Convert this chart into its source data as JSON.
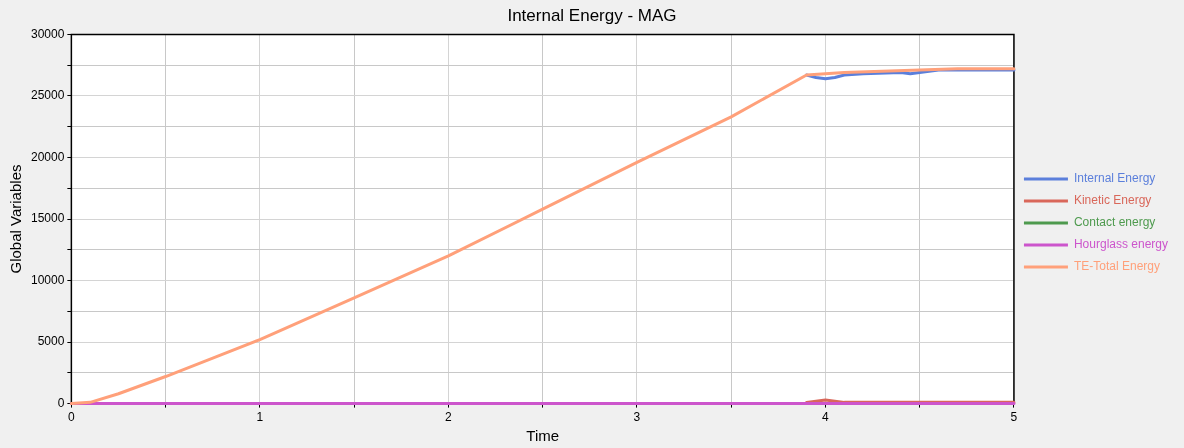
{
  "chart_data": {
    "type": "line",
    "title": "Internal Energy - MAG",
    "xlabel": "Time",
    "ylabel": "Global Variables",
    "xlim": [
      0,
      5
    ],
    "xticks": [
      0,
      {
        "value": 0.5,
        "label": null
      },
      1,
      {
        "value": 1.5,
        "label": null
      },
      2,
      {
        "value": 2.5,
        "label": null
      },
      3,
      {
        "value": 3.5,
        "label": null
      },
      4,
      {
        "value": 4.5,
        "label": null
      },
      5
    ],
    "ylim": [
      0,
      30000
    ],
    "yticks": [
      0,
      {
        "value": 2500,
        "label": null
      },
      5000,
      {
        "value": 7500,
        "label": null
      },
      10000,
      {
        "value": 12500,
        "label": null
      },
      15000,
      {
        "value": 17500,
        "label": null
      },
      20000,
      {
        "value": 22500,
        "label": null
      },
      25000,
      {
        "value": 27500,
        "label": null
      },
      30000
    ],
    "grid": true,
    "legend": "right",
    "marker": "none",
    "line_style": "solid",
    "series": [
      {
        "name": "Internal Energy",
        "color": "#5b7fdb",
        "x": [
          3.9,
          3.95,
          4.0,
          4.05,
          4.1,
          4.2,
          4.4,
          4.45,
          4.5,
          4.6,
          4.8,
          5
        ],
        "values": [
          26700,
          26500,
          26400,
          26500,
          26700,
          26800,
          26900,
          26800,
          26900,
          27100,
          27100,
          27100
        ]
      },
      {
        "name": "Kinetic Energy",
        "color": "#d9675a",
        "x": [
          3.9,
          3.95,
          4.0,
          4.05,
          4.1,
          4.2,
          4.3,
          4.35,
          4.4,
          4.45,
          4.5,
          5
        ],
        "values": [
          100,
          200,
          300,
          200,
          100,
          100,
          100,
          100,
          100,
          100,
          100,
          100
        ]
      },
      {
        "name": "Contact energy",
        "color": "#4e9a4e"
      },
      {
        "name": "Hourglass energy",
        "color": "#cc55cc",
        "x": [
          0,
          5
        ],
        "values": [
          0,
          0
        ]
      },
      {
        "name": "TE-Total Energy",
        "color": "#ffa07a",
        "x": [
          0,
          0.1,
          0.25,
          0.5,
          0.75,
          1,
          1.5,
          2,
          2.5,
          3,
          3.5,
          3.9,
          4.1,
          4.5,
          4.7,
          5
        ],
        "values": [
          0,
          100,
          800,
          2200,
          3700,
          5200,
          8600,
          12000,
          15800,
          19600,
          23300,
          26700,
          26900,
          27100,
          27200,
          27200
        ]
      }
    ]
  }
}
